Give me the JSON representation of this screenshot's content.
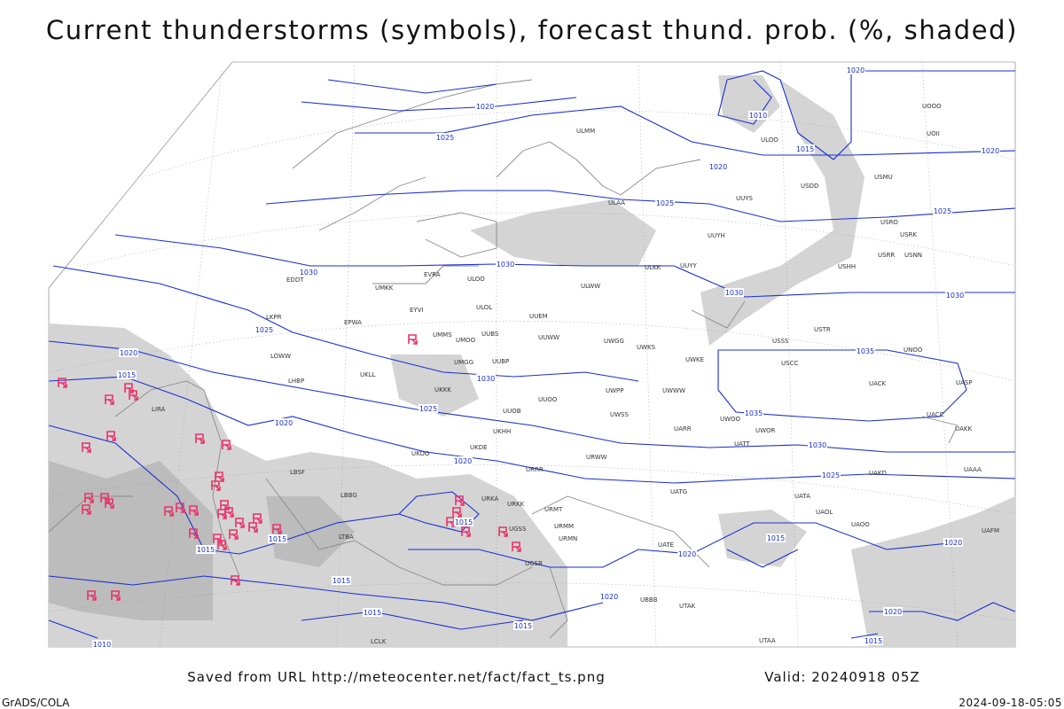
{
  "header": {
    "title": "Current thunderstorms (symbols), forecast thund. prob. (%, shaded)"
  },
  "footer": {
    "saved": "Saved from URL http://meteocenter.net/fact/fact_ts.png",
    "valid": "Valid: 20240918 05Z",
    "left": "GrADS/COLA",
    "right": "2024-09-18-05:05"
  },
  "isobar_labels": [
    1020,
    1025,
    1020,
    1010,
    1015,
    1020,
    1020,
    1025,
    1025,
    1030,
    1030,
    1030,
    1030,
    1025,
    1020,
    1015,
    1030,
    1035,
    1035,
    1025,
    1020,
    1020,
    1030,
    1025,
    1015,
    1015,
    1015,
    1015,
    1020,
    1020,
    1015,
    1020,
    1015,
    1015,
    1020,
    1015,
    1010
  ],
  "stations": [
    "ULMM",
    "ULOO",
    "UOII",
    "UOOO",
    "USDD",
    "USMU",
    "ULAA",
    "UUYS",
    "UUYH",
    "USRO",
    "USRR",
    "USRK",
    "USNN",
    "USHH",
    "ULKK",
    "UUYY",
    "ULWW",
    "EVRA",
    "ULOO",
    "EDDT",
    "EPWA",
    "UMKK",
    "ULOL",
    "UUEM",
    "EYVI",
    "UMMS",
    "UMOO",
    "UUBS",
    "UUWW",
    "UWGG",
    "UWKS",
    "UWKE",
    "USSS",
    "USTR",
    "UNOO",
    "USCC",
    "UACK",
    "UASP",
    "UWWW",
    "UWPP",
    "UMGG",
    "UUBP",
    "UUOO",
    "UUOB",
    "UKKK",
    "UKLL",
    "LHBP",
    "LKPR",
    "LOWW",
    "LIRA",
    "UKOO",
    "UKHH",
    "UKDE",
    "URRR",
    "URWW",
    "UWSS",
    "UWOO",
    "UWOR",
    "UATT",
    "UARR",
    "UACC",
    "UAKK",
    "UAKD",
    "UAAA",
    "UATG",
    "UATA",
    "UAOL",
    "UAOO",
    "UATE",
    "UAFM",
    "LBSF",
    "LBBG",
    "URKA",
    "URKK",
    "URMT",
    "URMM",
    "URMN",
    "UGSS",
    "UGSB",
    "UBBB",
    "UTAK",
    "UTAA",
    "LTBA",
    "LCLK"
  ]
}
